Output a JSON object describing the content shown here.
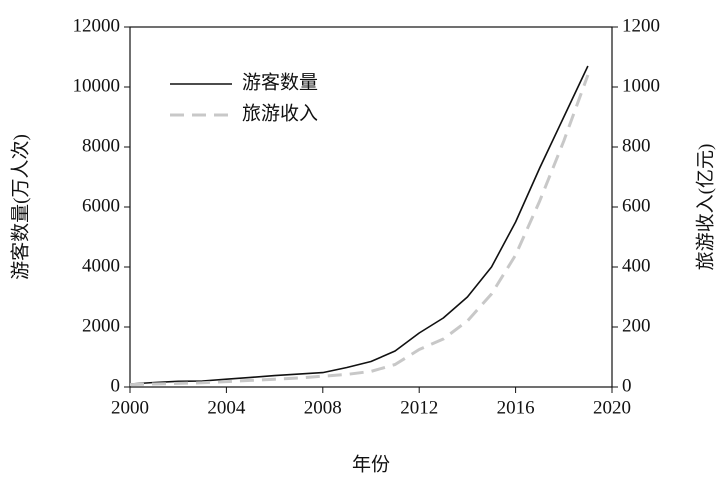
{
  "chart_data": {
    "type": "line",
    "x_label": "年份",
    "y_label": "游客数量(万人次)",
    "y2_label": "旅游收入(亿元)",
    "x": [
      2000,
      2001,
      2002,
      2003,
      2004,
      2005,
      2006,
      2007,
      2008,
      2009,
      2010,
      2011,
      2012,
      2013,
      2014,
      2015,
      2016,
      2017,
      2018,
      2019
    ],
    "xlim": [
      2000,
      2020
    ],
    "xticks": [
      2000,
      2004,
      2008,
      2012,
      2016,
      2020
    ],
    "ylim": [
      0,
      12000
    ],
    "yticks": [
      0,
      2000,
      4000,
      6000,
      8000,
      10000,
      12000
    ],
    "y2lim": [
      0,
      1200
    ],
    "y2ticks": [
      0,
      200,
      400,
      600,
      800,
      1000,
      1200
    ],
    "legend": "upper left",
    "series": [
      {
        "name": "游客数量",
        "color": "#111111",
        "dash": false,
        "values": [
          100,
          150,
          190,
          200,
          260,
          320,
          380,
          430,
          480,
          650,
          850,
          1200,
          1800,
          2300,
          3000,
          4000,
          5500,
          7300,
          9000,
          10700
        ]
      },
      {
        "name": "旅游收入",
        "color": "#c8c8c8",
        "dash": true,
        "axis": "y2",
        "values": [
          8,
          10,
          12,
          14,
          18,
          22,
          26,
          30,
          36,
          42,
          52,
          75,
          125,
          160,
          220,
          310,
          440,
          620,
          820,
          1040
        ]
      }
    ]
  }
}
